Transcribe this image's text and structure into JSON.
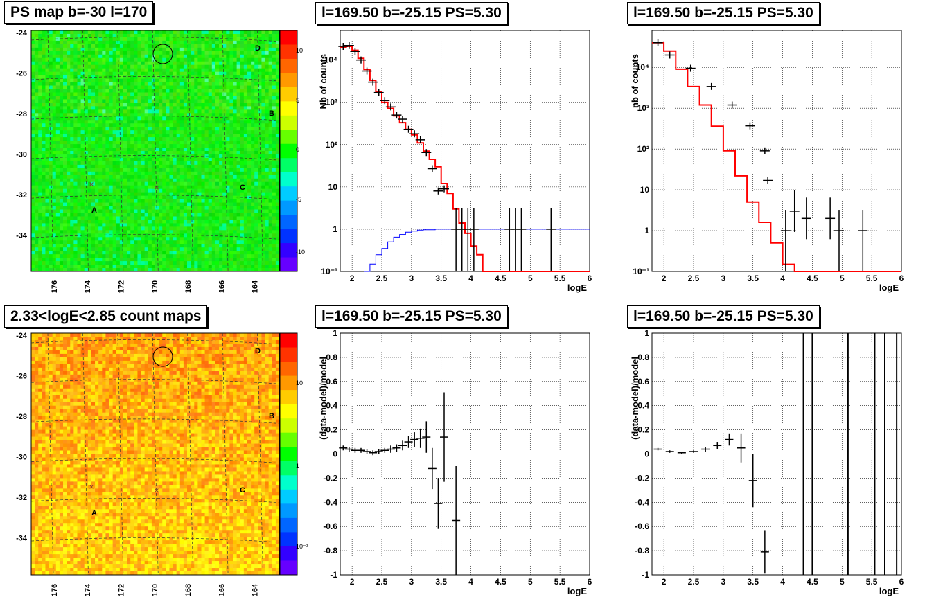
{
  "panels": {
    "ps_map_title": "PS map b=-30 l=170",
    "count_map_title": "2.33<logE<2.85 count maps",
    "spec1_title": "l=169.50 b=-25.15 PS=5.30",
    "spec2_title": "l=169.50 b=-25.15 PS=5.30",
    "res1_title": "l=169.50 b=-25.15 PS=5.30",
    "res2_title": "l=169.50 b=-25.15 PS=5.30"
  },
  "colors": {
    "data": "#000000",
    "model": "#ff0000",
    "curve": "#0000ff"
  },
  "chart_data": [
    {
      "type": "heatmap",
      "id": "ps_map",
      "x_ticks": [
        176,
        174,
        172,
        170,
        168,
        166,
        164
      ],
      "y_ticks": [
        -24,
        -26,
        -28,
        -30,
        -32,
        -34
      ],
      "colorbar_ticks": [
        "10",
        "5",
        "0",
        "-5",
        "-10"
      ],
      "labels": [
        "A",
        "B",
        "C",
        "D"
      ],
      "colormap": "rainbow",
      "dominant_color": "green"
    },
    {
      "type": "heatmap",
      "id": "count_map",
      "x_ticks": [
        176,
        174,
        172,
        170,
        168,
        166,
        164
      ],
      "y_ticks": [
        -24,
        -26,
        -28,
        -30,
        -32,
        -34
      ],
      "colorbar_ticks": [
        "10",
        "1",
        "10⁻¹"
      ],
      "labels": [
        "A",
        "B",
        "C",
        "D"
      ],
      "colormap": "rainbow-log",
      "dominant_color": "orange"
    },
    {
      "type": "line",
      "id": "spec1",
      "ylog": true,
      "xlabel": "logE",
      "ylabel": "Nb of counts",
      "xlim": [
        1.8,
        6
      ],
      "ylim": [
        0.1,
        50000
      ],
      "x_ticks": [
        "2",
        "2.5",
        "3",
        "3.5",
        "4",
        "4.5",
        "5",
        "5.5",
        "6"
      ],
      "y_ticks": [
        "10⁻¹",
        "1",
        "10",
        "10²",
        "10³",
        "10⁴"
      ],
      "model_step": [
        [
          1.8,
          20000
        ],
        [
          1.9,
          21000
        ],
        [
          2.0,
          17000
        ],
        [
          2.1,
          11000
        ],
        [
          2.2,
          6000
        ],
        [
          2.3,
          3300
        ],
        [
          2.4,
          1800
        ],
        [
          2.5,
          1000
        ],
        [
          2.6,
          720
        ],
        [
          2.7,
          480
        ],
        [
          2.8,
          330
        ],
        [
          2.9,
          230
        ],
        [
          3.0,
          170
        ],
        [
          3.1,
          110
        ],
        [
          3.2,
          70
        ],
        [
          3.3,
          45
        ],
        [
          3.4,
          30
        ],
        [
          3.5,
          12
        ],
        [
          3.6,
          7
        ],
        [
          3.7,
          3
        ],
        [
          3.8,
          1.4
        ],
        [
          3.9,
          0.8
        ],
        [
          4.0,
          0.4
        ],
        [
          4.1,
          0.25
        ],
        [
          4.2,
          0.1
        ],
        [
          6,
          0.1
        ]
      ],
      "blue_curve": [
        [
          2.2,
          0.1
        ],
        [
          2.3,
          0.15
        ],
        [
          2.4,
          0.25
        ],
        [
          2.5,
          0.35
        ],
        [
          2.6,
          0.5
        ],
        [
          2.7,
          0.65
        ],
        [
          2.8,
          0.75
        ],
        [
          2.9,
          0.85
        ],
        [
          3.0,
          0.9
        ],
        [
          3.1,
          0.95
        ],
        [
          3.2,
          0.97
        ],
        [
          3.4,
          1
        ],
        [
          6,
          1
        ]
      ],
      "points": [
        [
          1.85,
          21000
        ],
        [
          1.95,
          22000
        ],
        [
          2.05,
          16000
        ],
        [
          2.15,
          10000
        ],
        [
          2.25,
          5500
        ],
        [
          2.35,
          3000
        ],
        [
          2.45,
          1700
        ],
        [
          2.55,
          1100
        ],
        [
          2.65,
          780
        ],
        [
          2.75,
          500
        ],
        [
          2.85,
          400
        ],
        [
          2.95,
          230
        ],
        [
          3.05,
          180
        ],
        [
          3.15,
          130
        ],
        [
          3.25,
          65
        ],
        [
          3.35,
          27
        ],
        [
          3.45,
          8
        ],
        [
          3.55,
          9
        ],
        [
          3.75,
          1
        ],
        [
          3.85,
          1
        ],
        [
          3.95,
          1
        ],
        [
          4.05,
          1
        ],
        [
          4.65,
          1
        ],
        [
          4.75,
          1
        ],
        [
          4.85,
          1
        ],
        [
          5.35,
          1
        ]
      ]
    },
    {
      "type": "line",
      "id": "spec2",
      "ylog": true,
      "xlabel": "logE",
      "ylabel": "nb of counts",
      "xlim": [
        1.8,
        6
      ],
      "ylim": [
        0.1,
        80000
      ],
      "x_ticks": [
        "2",
        "2.5",
        "3",
        "3.5",
        "4",
        "4.5",
        "5",
        "5.5",
        "6"
      ],
      "y_ticks": [
        "10⁻¹",
        "1",
        "10",
        "10²",
        "10³",
        "10⁴"
      ],
      "model_step": [
        [
          1.8,
          40000
        ],
        [
          2.0,
          25000
        ],
        [
          2.2,
          9000
        ],
        [
          2.4,
          3400
        ],
        [
          2.6,
          1200
        ],
        [
          2.8,
          360
        ],
        [
          3.0,
          90
        ],
        [
          3.2,
          22
        ],
        [
          3.4,
          5
        ],
        [
          3.6,
          1.6
        ],
        [
          3.8,
          0.5
        ],
        [
          4.0,
          0.15
        ],
        [
          4.2,
          0.1
        ],
        [
          6,
          0.1
        ]
      ],
      "points": [
        [
          1.9,
          40000
        ],
        [
          2.1,
          20000
        ],
        [
          2.45,
          9500
        ],
        [
          2.8,
          3400
        ],
        [
          3.15,
          1200
        ],
        [
          3.45,
          370
        ],
        [
          3.7,
          90
        ],
        [
          3.75,
          17
        ],
        [
          4.05,
          1
        ],
        [
          4.2,
          3
        ],
        [
          4.4,
          2
        ],
        [
          4.8,
          2
        ],
        [
          4.95,
          1
        ],
        [
          5.35,
          1
        ]
      ]
    },
    {
      "type": "scatter",
      "id": "res1",
      "xlabel": "logE",
      "ylabel": "(data-model)/model",
      "xlim": [
        1.8,
        6
      ],
      "ylim": [
        -1,
        1
      ],
      "x_ticks": [
        "2",
        "2.5",
        "3",
        "3.5",
        "4",
        "4.5",
        "5",
        "5.5",
        "6"
      ],
      "y_ticks": [
        "1",
        "0.8",
        "0.6",
        "0.4",
        "0.2",
        "0",
        "-0.2",
        "-0.4",
        "-0.6",
        "-0.8",
        "-1"
      ],
      "points": [
        [
          1.85,
          0.05,
          0.02
        ],
        [
          1.95,
          0.04,
          0.02
        ],
        [
          2.05,
          0.03,
          0.02
        ],
        [
          2.15,
          0.03,
          0.02
        ],
        [
          2.25,
          0.02,
          0.02
        ],
        [
          2.35,
          0.01,
          0.02
        ],
        [
          2.45,
          0.02,
          0.02
        ],
        [
          2.55,
          0.03,
          0.02
        ],
        [
          2.65,
          0.04,
          0.03
        ],
        [
          2.75,
          0.05,
          0.03
        ],
        [
          2.85,
          0.07,
          0.04
        ],
        [
          2.95,
          0.1,
          0.05
        ],
        [
          3.05,
          0.12,
          0.06
        ],
        [
          3.15,
          0.13,
          0.08
        ],
        [
          3.25,
          0.14,
          0.13
        ],
        [
          3.35,
          -0.12,
          0.17
        ],
        [
          3.45,
          -0.41,
          0.21
        ],
        [
          3.55,
          0.14,
          0.37
        ],
        [
          3.75,
          -0.55,
          0.45
        ]
      ]
    },
    {
      "type": "scatter",
      "id": "res2",
      "xlabel": "logE",
      "ylabel": "(data-model)/model",
      "xlim": [
        1.8,
        6
      ],
      "ylim": [
        -1,
        1
      ],
      "x_ticks": [
        "2",
        "2.5",
        "3",
        "3.5",
        "4",
        "4.5",
        "5",
        "5.5",
        "6"
      ],
      "y_ticks": [
        "1",
        "0.8",
        "0.6",
        "0.4",
        "0.2",
        "0",
        "-0.2",
        "-0.4",
        "-0.6",
        "-0.8",
        "-1"
      ],
      "points": [
        [
          1.9,
          0.04,
          0.01
        ],
        [
          2.1,
          0.02,
          0.01
        ],
        [
          2.3,
          0.01,
          0.01
        ],
        [
          2.5,
          0.02,
          0.01
        ],
        [
          2.7,
          0.04,
          0.02
        ],
        [
          2.9,
          0.07,
          0.03
        ],
        [
          3.1,
          0.12,
          0.05
        ],
        [
          3.3,
          0.05,
          0.12
        ],
        [
          3.5,
          -0.22,
          0.22
        ],
        [
          3.7,
          -0.81,
          0.18
        ]
      ],
      "full_bars": [
        4.35,
        4.5,
        5.1,
        5.55,
        5.72,
        5.92
      ]
    }
  ]
}
